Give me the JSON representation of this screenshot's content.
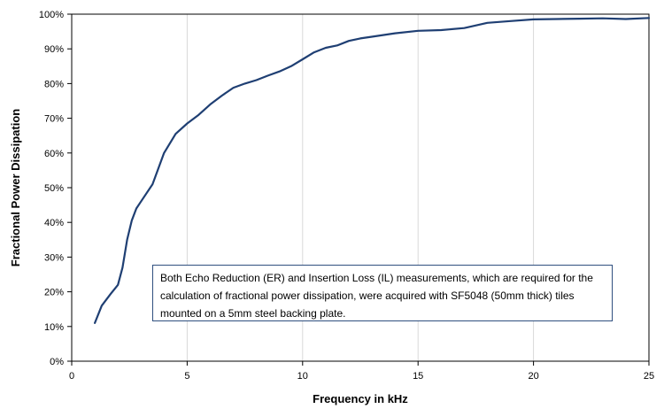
{
  "chart_data": {
    "type": "line",
    "title": "",
    "xlabel": "Frequency in kHz",
    "ylabel": "Fractional Power Dissipation",
    "xlim": [
      0,
      25
    ],
    "ylim": [
      0,
      100
    ],
    "x_ticks": [
      "0",
      "5",
      "10",
      "15",
      "20",
      "25"
    ],
    "y_ticks": [
      "0%",
      "10%",
      "20%",
      "30%",
      "40%",
      "50%",
      "60%",
      "70%",
      "80%",
      "90%",
      "100%"
    ],
    "grid": "vertical",
    "line_color": "#1f3f73",
    "annotation": "Both Echo Reduction (ER) and Insertion Loss (IL) measurements, which are required for the calculation of fractional power dissipation, were acquired with SF5048 (50mm thick) tiles mounted on a 5mm steel backing plate.",
    "series": [
      {
        "x": [
          1.0,
          1.3,
          1.7,
          2.0,
          2.2,
          2.4,
          2.6,
          2.8,
          3.0,
          3.5,
          4.0,
          4.5,
          5.0,
          5.5,
          6.0,
          6.5,
          7.0,
          7.5,
          8.0,
          8.5,
          9.0,
          9.5,
          10.0,
          10.5,
          11.0,
          11.5,
          12.0,
          12.5,
          13.0,
          14.0,
          15.0,
          16.0,
          17.0,
          18.0,
          19.0,
          20.0,
          21.0,
          22.0,
          23.0,
          24.0,
          25.0
        ],
        "y": [
          11,
          16,
          19.5,
          22,
          27,
          35,
          40.5,
          44,
          46,
          51,
          60,
          65.5,
          68.5,
          71,
          74,
          76.5,
          78.8,
          80,
          81,
          82.3,
          83.5,
          85,
          87,
          89,
          90.3,
          91,
          92.3,
          93,
          93.5,
          94.5,
          95.2,
          95.4,
          96,
          97.5,
          98,
          98.5,
          98.6,
          98.7,
          98.8,
          98.6,
          98.9
        ]
      }
    ]
  }
}
